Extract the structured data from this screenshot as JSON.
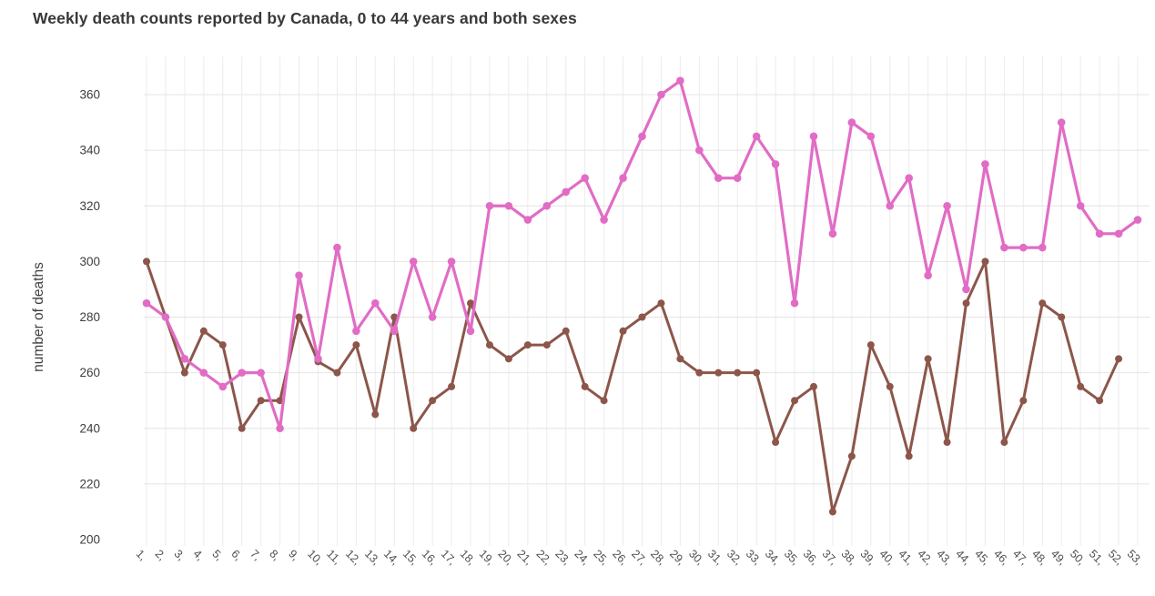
{
  "title": "Weekly death counts reported by Canada, 0 to 44 years and both sexes",
  "colors": {
    "pink": "#e16cc5",
    "brown": "#8c564b",
    "grid_h": "#e4e4e4",
    "grid_v": "#ececec",
    "title_text": "#383838",
    "ytick_text": "#3d3d3d",
    "xtick_text": "#4f4f4f",
    "ylabel_text": "#3f3f3f",
    "background": "#ffffff"
  },
  "chart_data": {
    "type": "line",
    "title": "Weekly death counts reported by Canada, 0 to 44 years and both sexes",
    "xlabel": "",
    "ylabel": "number of deaths",
    "ylim": [
      200,
      372
    ],
    "yticks": [
      200,
      220,
      240,
      260,
      280,
      300,
      320,
      340,
      360
    ],
    "grid": true,
    "legend_position": "none",
    "x": [
      1,
      2,
      3,
      4,
      5,
      6,
      7,
      8,
      9,
      10,
      11,
      12,
      13,
      14,
      15,
      16,
      17,
      18,
      19,
      20,
      21,
      22,
      23,
      24,
      25,
      26,
      27,
      28,
      29,
      30,
      31,
      32,
      33,
      34,
      35,
      36,
      37,
      38,
      39,
      40,
      41,
      42,
      43,
      44,
      45,
      46,
      47,
      48,
      49,
      50,
      51,
      52,
      53
    ],
    "xtick_labels": [
      "1,",
      "2,",
      "3,",
      "4,",
      "5,",
      "6,",
      "7,",
      "8,",
      "9,",
      "10,",
      "11,",
      "12,",
      "13,",
      "14,",
      "15,",
      "16,",
      "17,",
      "18,",
      "19,",
      "20,",
      "21,",
      "22,",
      "23,",
      "24,",
      "25,",
      "26,",
      "27,",
      "28,",
      "29,",
      "30,",
      "31,",
      "32,",
      "33,",
      "34,",
      "35,",
      "36,",
      "37,",
      "38,",
      "39,",
      "40,",
      "41,",
      "42,",
      "43,",
      "44,",
      "45,",
      "46,",
      "47,",
      "48,",
      "49,",
      "50,",
      "51,",
      "52,",
      "53,"
    ],
    "series": [
      {
        "name": "brown",
        "color": "#8c564b",
        "values": [
          300,
          280,
          260,
          275,
          270,
          240,
          250,
          250,
          280,
          264,
          260,
          270,
          245,
          280,
          240,
          250,
          255,
          285,
          270,
          265,
          270,
          270,
          275,
          255,
          250,
          275,
          280,
          285,
          265,
          260,
          260,
          260,
          260,
          235,
          250,
          255,
          210,
          230,
          270,
          255,
          230,
          265,
          235,
          285,
          300,
          235,
          250,
          285,
          280,
          255,
          250,
          265
        ]
      },
      {
        "name": "pink",
        "color": "#e16cc5",
        "values": [
          285,
          280,
          265,
          260,
          255,
          260,
          260,
          240,
          295,
          265,
          305,
          275,
          285,
          275,
          300,
          280,
          300,
          275,
          320,
          320,
          315,
          320,
          325,
          330,
          315,
          330,
          345,
          360,
          365,
          340,
          330,
          330,
          345,
          335,
          285,
          345,
          310,
          350,
          345,
          320,
          330,
          295,
          320,
          290,
          335,
          305,
          305,
          305,
          350,
          320,
          310,
          310,
          315
        ]
      }
    ]
  }
}
